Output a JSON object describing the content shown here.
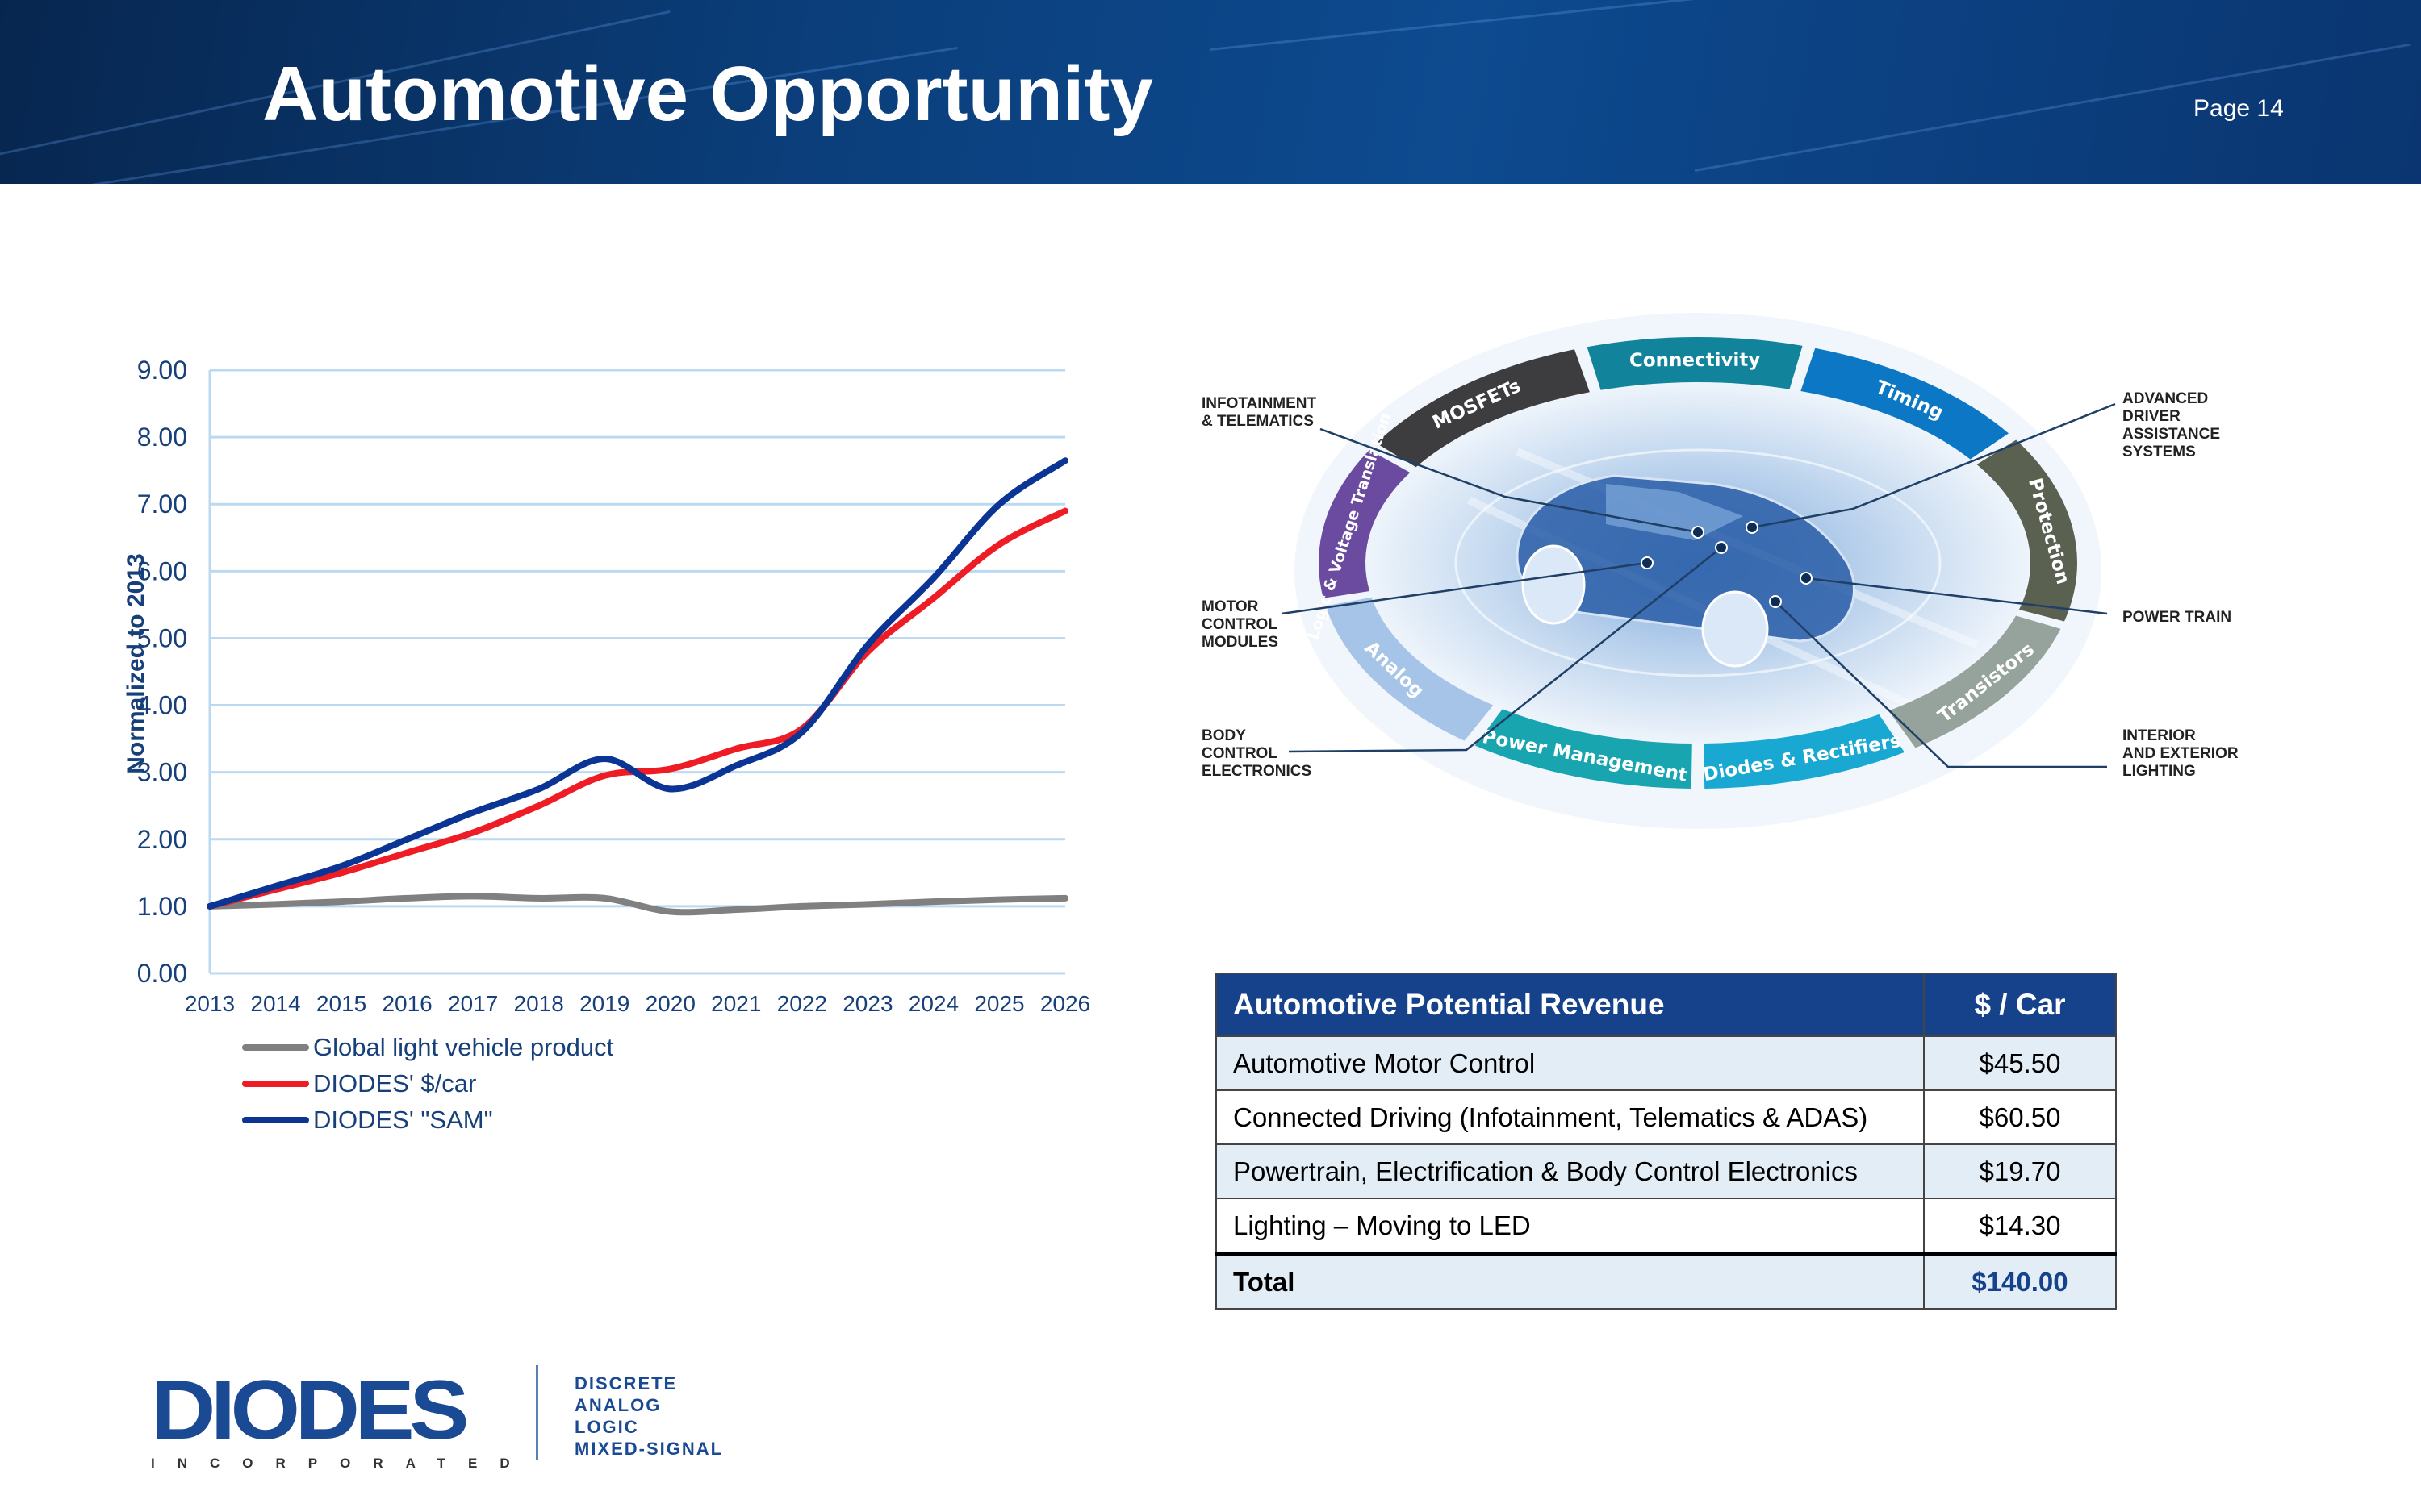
{
  "header": {
    "title": "Automotive Opportunity",
    "page": "Page 14"
  },
  "chart_data": {
    "type": "line",
    "title": "",
    "xlabel": "",
    "ylabel": "Normalized to 2013",
    "x": [
      2013,
      2014,
      2015,
      2016,
      2017,
      2018,
      2019,
      2020,
      2021,
      2022,
      2023,
      2024,
      2025,
      2026
    ],
    "x_tick_labels": [
      "2013",
      "2014",
      "2015",
      "2016",
      "2017",
      "2018",
      "2019",
      "2020",
      "2021",
      "2022",
      "2023",
      "2024",
      "2025",
      "2026"
    ],
    "y_tick_labels": [
      "0.00",
      "1.00",
      "2.00",
      "3.00",
      "4.00",
      "5.00",
      "6.00",
      "7.00",
      "8.00",
      "9.00"
    ],
    "ylim": [
      0,
      9
    ],
    "grid": "horizontal",
    "legend": "bottom-left",
    "series": [
      {
        "name": "Global light vehicle product",
        "color": "#808080",
        "values": [
          1.0,
          1.03,
          1.07,
          1.12,
          1.15,
          1.12,
          1.12,
          0.92,
          0.95,
          1.0,
          1.03,
          1.07,
          1.1,
          1.12
        ]
      },
      {
        "name": "DIODES' $/car",
        "color": "#ee1c25",
        "values": [
          1.0,
          1.25,
          1.5,
          1.8,
          2.1,
          2.5,
          2.95,
          3.05,
          3.35,
          3.65,
          4.8,
          5.6,
          6.4,
          6.9
        ]
      },
      {
        "name": "DIODES' \"SAM\"",
        "color": "#0a3594",
        "values": [
          1.0,
          1.3,
          1.6,
          2.0,
          2.4,
          2.75,
          3.2,
          2.75,
          3.1,
          3.6,
          4.9,
          5.9,
          7.0,
          7.65
        ]
      }
    ]
  },
  "diagram": {
    "segments": [
      {
        "label": "MOSFETs",
        "color": "#3d3d3f"
      },
      {
        "label": "Connectivity",
        "color": "#11849c"
      },
      {
        "label": "Timing",
        "color": "#0b77c5"
      },
      {
        "label": "Protection",
        "color": "#5a6150"
      },
      {
        "label": "Transistors",
        "color": "#95a39c"
      },
      {
        "label": "Diodes & Rectifiers",
        "color": "#19a8d2"
      },
      {
        "label": "Power Management",
        "color": "#18a5b0"
      },
      {
        "label": "Analog",
        "color": "#a6c4e8"
      },
      {
        "label": "Logic & Voltage Translation",
        "color": "#6a4ba0"
      }
    ],
    "callouts": {
      "infotainment": "INFOTAINMENT\n& TELEMATICS",
      "adas": "ADVANCED\nDRIVER\nASSISTANCE\nSYSTEMS",
      "motor": "MOTOR\nCONTROL\nMODULES",
      "powertrain": "POWER TRAIN",
      "body": "BODY\nCONTROL\nELECTRONICS",
      "lighting": "INTERIOR\nAND EXTERIOR\nLIGHTING"
    }
  },
  "table": {
    "headers": [
      "Automotive Potential Revenue",
      "$ / Car"
    ],
    "rows": [
      [
        "Automotive Motor Control",
        "$45.50"
      ],
      [
        "Connected Driving (Infotainment, Telematics & ADAS)",
        "$60.50"
      ],
      [
        "Powertrain, Electrification & Body Control Electronics",
        "$19.70"
      ],
      [
        "Lighting – Moving to LED",
        "$14.30"
      ]
    ],
    "total": [
      "Total",
      "$140.00"
    ]
  },
  "logo": {
    "name": "DIODES",
    "sub": "INCORPORATED",
    "tagline": [
      "DISCRETE",
      "ANALOG",
      "LOGIC",
      "MIXED-SIGNAL"
    ]
  }
}
